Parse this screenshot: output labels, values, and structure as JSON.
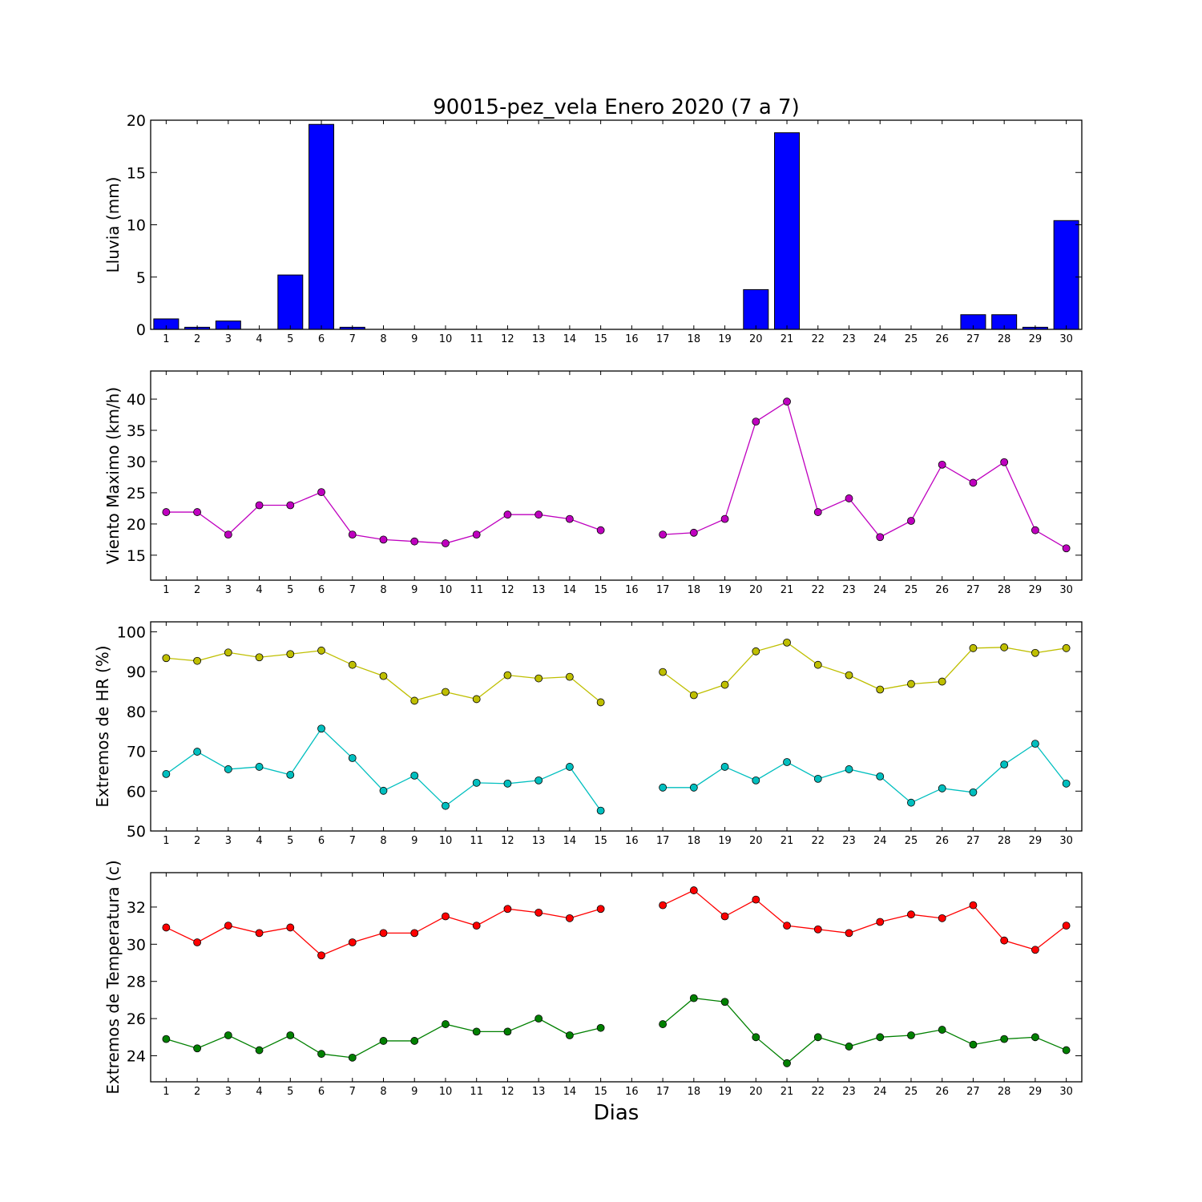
{
  "figure": {
    "title": "90015-pez_vela Enero 2020  (7 a 7)",
    "xlabel": "Dias"
  },
  "chart_data": [
    {
      "type": "bar",
      "ylabel": "Lluvia (mm)",
      "ylim": [
        0,
        20
      ],
      "yticks": [
        0,
        5,
        10,
        15,
        20
      ],
      "categories": [
        "1",
        "2",
        "3",
        "4",
        "5",
        "6",
        "7",
        "8",
        "9",
        "10",
        "11",
        "12",
        "13",
        "14",
        "15",
        "16",
        "17",
        "18",
        "19",
        "20",
        "21",
        "22",
        "23",
        "24",
        "25",
        "26",
        "27",
        "28",
        "29",
        "30"
      ],
      "series": [
        {
          "color": "#0000ff",
          "values": [
            1.0,
            0.2,
            0.8,
            0,
            5.2,
            19.6,
            0.2,
            0,
            0,
            0,
            0,
            0,
            0,
            0,
            0,
            0,
            0,
            0,
            0,
            3.8,
            18.8,
            0,
            0,
            0,
            0,
            0,
            1.4,
            1.4,
            0.2,
            10.4
          ]
        }
      ]
    },
    {
      "type": "line",
      "ylabel": "Viento Maximo (km/h)",
      "ylim": [
        11,
        44.5
      ],
      "yticks": [
        15,
        20,
        25,
        30,
        35,
        40
      ],
      "categories": [
        "1",
        "2",
        "3",
        "4",
        "5",
        "6",
        "7",
        "8",
        "9",
        "10",
        "11",
        "12",
        "13",
        "14",
        "15",
        "16",
        "17",
        "18",
        "19",
        "20",
        "21",
        "22",
        "23",
        "24",
        "25",
        "26",
        "27",
        "28",
        "29",
        "30"
      ],
      "series": [
        {
          "color": "#bf00bf",
          "values": [
            21.9,
            21.9,
            18.3,
            23.0,
            23.0,
            25.1,
            18.3,
            17.5,
            17.2,
            16.9,
            18.3,
            21.5,
            21.5,
            20.8,
            19.0,
            null,
            18.3,
            18.6,
            20.8,
            36.4,
            39.6,
            21.9,
            24.1,
            17.9,
            20.5,
            29.5,
            26.6,
            29.9,
            19.0,
            16.1
          ]
        }
      ]
    },
    {
      "type": "line",
      "ylabel": "Extremos de HR (%)",
      "ylim": [
        50,
        102.5
      ],
      "yticks": [
        50,
        60,
        70,
        80,
        90,
        100
      ],
      "categories": [
        "1",
        "2",
        "3",
        "4",
        "5",
        "6",
        "7",
        "8",
        "9",
        "10",
        "11",
        "12",
        "13",
        "14",
        "15",
        "16",
        "17",
        "18",
        "19",
        "20",
        "21",
        "22",
        "23",
        "24",
        "25",
        "26",
        "27",
        "28",
        "29",
        "30"
      ],
      "series": [
        {
          "color": "#bfbf00",
          "values": [
            93.4,
            92.7,
            94.8,
            93.6,
            94.4,
            95.3,
            91.7,
            88.9,
            82.7,
            84.9,
            83.1,
            89.1,
            88.3,
            88.7,
            82.3,
            null,
            89.9,
            84.1,
            86.7,
            95.1,
            97.3,
            91.7,
            89.1,
            85.5,
            86.9,
            87.5,
            95.9,
            96.1,
            94.7,
            95.9
          ]
        },
        {
          "color": "#00bfbf",
          "values": [
            64.3,
            69.9,
            65.5,
            66.1,
            64.1,
            75.7,
            68.3,
            60.1,
            63.9,
            56.3,
            62.1,
            61.9,
            62.7,
            66.1,
            55.1,
            null,
            60.9,
            60.9,
            66.1,
            62.7,
            67.3,
            63.1,
            65.5,
            63.7,
            57.1,
            60.7,
            59.7,
            66.7,
            71.9,
            61.9
          ]
        }
      ]
    },
    {
      "type": "line",
      "ylabel": "Extremos de Temperatura (c)",
      "ylim": [
        22.6,
        33.85
      ],
      "yticks": [
        24,
        26,
        28,
        30,
        32
      ],
      "categories": [
        "1",
        "2",
        "3",
        "4",
        "5",
        "6",
        "7",
        "8",
        "9",
        "10",
        "11",
        "12",
        "13",
        "14",
        "15",
        "16",
        "17",
        "18",
        "19",
        "20",
        "21",
        "22",
        "23",
        "24",
        "25",
        "26",
        "27",
        "28",
        "29",
        "30"
      ],
      "series": [
        {
          "color": "#ff0000",
          "values": [
            30.9,
            30.1,
            31.0,
            30.6,
            30.9,
            29.4,
            30.1,
            30.6,
            30.6,
            31.5,
            31.0,
            31.9,
            31.7,
            31.4,
            31.9,
            null,
            32.1,
            32.9,
            31.5,
            32.4,
            31.0,
            30.8,
            30.6,
            31.2,
            31.6,
            31.4,
            32.1,
            30.2,
            29.7,
            31.0
          ]
        },
        {
          "color": "#008000",
          "values": [
            24.9,
            24.4,
            25.1,
            24.3,
            25.1,
            24.1,
            23.9,
            24.8,
            24.8,
            25.7,
            25.3,
            25.3,
            26.0,
            25.1,
            25.5,
            null,
            25.7,
            27.1,
            26.9,
            25.0,
            23.6,
            25.0,
            24.5,
            25.0,
            25.1,
            25.4,
            24.6,
            24.9,
            25.0,
            24.3
          ]
        }
      ]
    }
  ]
}
